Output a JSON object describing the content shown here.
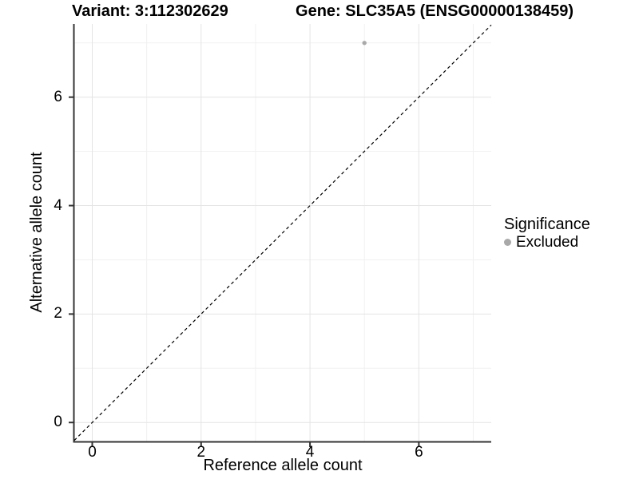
{
  "chart_data": {
    "type": "scatter",
    "title_left": "Variant: 3:112302629",
    "title_right": "Gene: SLC35A5 (ENSG00000138459)",
    "xlabel": "Reference allele count",
    "ylabel": "Alternative allele count",
    "xlim": [
      -0.33,
      7.33
    ],
    "ylim": [
      -0.35,
      7.35
    ],
    "x_ticks": [
      0,
      2,
      4,
      6
    ],
    "y_ticks": [
      0,
      2,
      4,
      6
    ],
    "x_minor_ticks": [
      1,
      3,
      5,
      7
    ],
    "y_minor_ticks": [
      1,
      3,
      5,
      7
    ],
    "grid": true,
    "legend_title": "Significance",
    "legend_position": "right",
    "series": [
      {
        "name": "Excluded",
        "color": "#a9a9a9",
        "points": [
          {
            "x": 5,
            "y": 7
          }
        ]
      }
    ],
    "reference_line": {
      "kind": "identity",
      "equation": "y = x",
      "style": "dashed",
      "color": "#000000"
    }
  },
  "colors": {
    "background": "#ffffff",
    "grid_major": "#e4e4e4",
    "grid_minor": "#f1f1f1",
    "axis_line": "#333333",
    "tick_mark": "#333333",
    "text": "#000000",
    "excluded_gray": "#a9a9a9"
  }
}
